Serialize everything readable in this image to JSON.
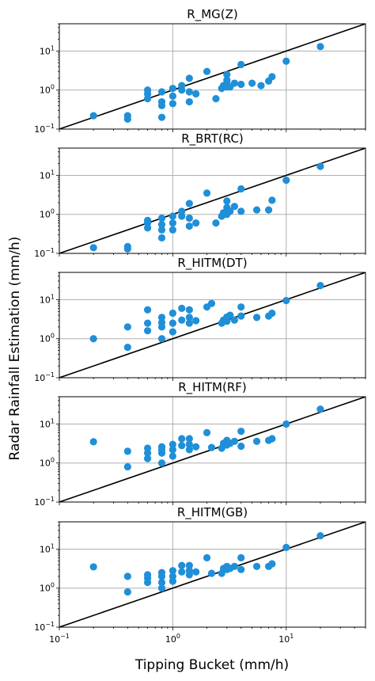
{
  "figure": {
    "ylabel": "Radar Rainfall Estimation (mm/h)",
    "xlabel": "Tipping Bucket (mm/h)",
    "colors": {
      "points": "#1f8fd8",
      "line": "#000000",
      "grid": "#b0b0b0"
    }
  },
  "chart_data": [
    {
      "type": "scatter",
      "title": "R_MG(Z)",
      "xscale": "log",
      "yscale": "log",
      "xlim": [
        0.1,
        50
      ],
      "ylim": [
        0.1,
        50
      ],
      "grid": true,
      "reference_line": "1:1",
      "xticks": [
        "10^-1",
        "10^0",
        "10^1"
      ],
      "yticks": [
        "10^-1",
        "10^0",
        "10^1"
      ],
      "x": [
        0.2,
        0.4,
        0.4,
        0.6,
        0.6,
        0.6,
        0.8,
        0.8,
        0.8,
        0.8,
        1.0,
        1.0,
        1.0,
        1.2,
        1.2,
        1.4,
        1.4,
        1.4,
        1.6,
        2.0,
        2.4,
        2.7,
        2.8,
        3.0,
        3.0,
        3.0,
        3.0,
        3.2,
        3.5,
        4.0,
        4.0,
        5.0,
        6.0,
        7.0,
        7.5,
        10.0,
        20.0
      ],
      "y": [
        0.22,
        0.18,
        0.22,
        0.6,
        0.8,
        1.0,
        0.2,
        0.4,
        0.5,
        0.9,
        0.45,
        0.7,
        1.1,
        1.0,
        1.3,
        0.5,
        0.9,
        2.0,
        0.8,
        3.0,
        0.6,
        1.1,
        1.3,
        1.2,
        1.5,
        1.8,
        2.5,
        1.2,
        1.5,
        1.4,
        4.5,
        1.5,
        1.3,
        1.7,
        2.2,
        5.5,
        13.0
      ]
    },
    {
      "type": "scatter",
      "title": "R_BRT(RC)",
      "xscale": "log",
      "yscale": "log",
      "xlim": [
        0.1,
        50
      ],
      "ylim": [
        0.1,
        50
      ],
      "grid": true,
      "reference_line": "1:1",
      "xticks": [
        "10^-1",
        "10^0",
        "10^1"
      ],
      "yticks": [
        "10^-1",
        "10^0",
        "10^1"
      ],
      "x": [
        0.2,
        0.4,
        0.4,
        0.6,
        0.6,
        0.6,
        0.8,
        0.8,
        0.8,
        0.8,
        1.0,
        1.0,
        1.0,
        1.2,
        1.2,
        1.4,
        1.4,
        1.4,
        1.6,
        2.0,
        2.4,
        2.7,
        2.8,
        3.0,
        3.0,
        3.0,
        3.2,
        3.5,
        4.0,
        4.0,
        5.5,
        7.0,
        7.5,
        10.0,
        20.0
      ],
      "y": [
        0.14,
        0.13,
        0.15,
        0.45,
        0.6,
        0.7,
        0.25,
        0.4,
        0.55,
        0.8,
        0.4,
        0.6,
        0.9,
        0.9,
        1.2,
        0.5,
        0.8,
        1.9,
        0.6,
        3.5,
        0.6,
        0.9,
        1.1,
        1.0,
        1.5,
        2.2,
        1.2,
        1.6,
        1.2,
        4.5,
        1.3,
        1.3,
        2.3,
        7.5,
        17.0
      ]
    },
    {
      "type": "scatter",
      "title": "R_HITM(DT)",
      "xscale": "log",
      "yscale": "log",
      "xlim": [
        0.1,
        50
      ],
      "ylim": [
        0.1,
        50
      ],
      "grid": true,
      "reference_line": "1:1",
      "xticks": [
        "10^-1",
        "10^0",
        "10^1"
      ],
      "yticks": [
        "10^-1",
        "10^0",
        "10^1"
      ],
      "x": [
        0.2,
        0.4,
        0.4,
        0.6,
        0.6,
        0.6,
        0.8,
        0.8,
        0.8,
        0.8,
        1.0,
        1.0,
        1.0,
        1.2,
        1.2,
        1.4,
        1.4,
        1.4,
        1.6,
        2.0,
        2.2,
        2.7,
        2.8,
        3.0,
        3.0,
        3.2,
        3.5,
        4.0,
        4.0,
        5.5,
        7.0,
        7.5,
        10.0,
        20.0
      ],
      "y": [
        1.0,
        0.6,
        2.0,
        1.6,
        2.5,
        5.5,
        1.0,
        2.0,
        2.6,
        3.5,
        1.5,
        2.5,
        4.5,
        3.0,
        6.0,
        2.5,
        3.5,
        5.5,
        2.9,
        6.5,
        8.0,
        2.5,
        3.0,
        2.8,
        3.6,
        4.0,
        3.0,
        3.8,
        6.5,
        3.5,
        3.8,
        4.5,
        9.5,
        23.0
      ]
    },
    {
      "type": "scatter",
      "title": "R_HITM(RF)",
      "xscale": "log",
      "yscale": "log",
      "xlim": [
        0.1,
        50
      ],
      "ylim": [
        0.1,
        50
      ],
      "grid": true,
      "reference_line": "1:1",
      "xticks": [
        "10^-1",
        "10^0",
        "10^1"
      ],
      "yticks": [
        "10^-1",
        "10^0",
        "10^1"
      ],
      "x": [
        0.2,
        0.4,
        0.4,
        0.6,
        0.6,
        0.6,
        0.8,
        0.8,
        0.8,
        0.8,
        1.0,
        1.0,
        1.0,
        1.2,
        1.2,
        1.4,
        1.4,
        1.4,
        1.6,
        2.0,
        2.2,
        2.7,
        2.8,
        3.0,
        3.0,
        3.2,
        3.5,
        4.0,
        4.0,
        5.5,
        7.0,
        7.5,
        10.0,
        20.0
      ],
      "y": [
        3.5,
        0.8,
        2.0,
        1.3,
        1.8,
        2.4,
        1.0,
        1.8,
        2.2,
        2.6,
        1.5,
        2.2,
        3.0,
        2.8,
        4.2,
        2.2,
        3.0,
        4.2,
        2.6,
        6.0,
        2.5,
        2.4,
        3.2,
        2.9,
        3.8,
        3.2,
        3.6,
        2.7,
        6.5,
        3.6,
        3.8,
        4.2,
        10.0,
        24.0
      ]
    },
    {
      "type": "scatter",
      "title": "R_HITM(GB)",
      "xscale": "log",
      "yscale": "log",
      "xlim": [
        0.1,
        50
      ],
      "ylim": [
        0.1,
        50
      ],
      "grid": true,
      "reference_line": "1:1",
      "xticks": [
        "10^-1",
        "10^0",
        "10^1"
      ],
      "yticks": [
        "10^-1",
        "10^0",
        "10^1"
      ],
      "x": [
        0.2,
        0.4,
        0.4,
        0.6,
        0.6,
        0.6,
        0.8,
        0.8,
        0.8,
        0.8,
        1.0,
        1.0,
        1.0,
        1.2,
        1.2,
        1.4,
        1.4,
        1.4,
        1.6,
        2.0,
        2.2,
        2.7,
        2.8,
        3.0,
        3.0,
        3.2,
        3.5,
        4.0,
        4.0,
        5.5,
        7.0,
        7.5,
        10.0,
        20.0
      ],
      "y": [
        3.5,
        0.8,
        2.0,
        1.4,
        1.8,
        2.2,
        1.0,
        1.4,
        2.0,
        2.5,
        1.5,
        2.0,
        2.8,
        2.6,
        3.8,
        2.2,
        2.8,
        3.8,
        2.6,
        6.0,
        2.4,
        2.4,
        3.2,
        3.0,
        3.6,
        3.2,
        3.6,
        3.0,
        6.0,
        3.6,
        3.6,
        4.2,
        11.0,
        22.0
      ]
    }
  ]
}
